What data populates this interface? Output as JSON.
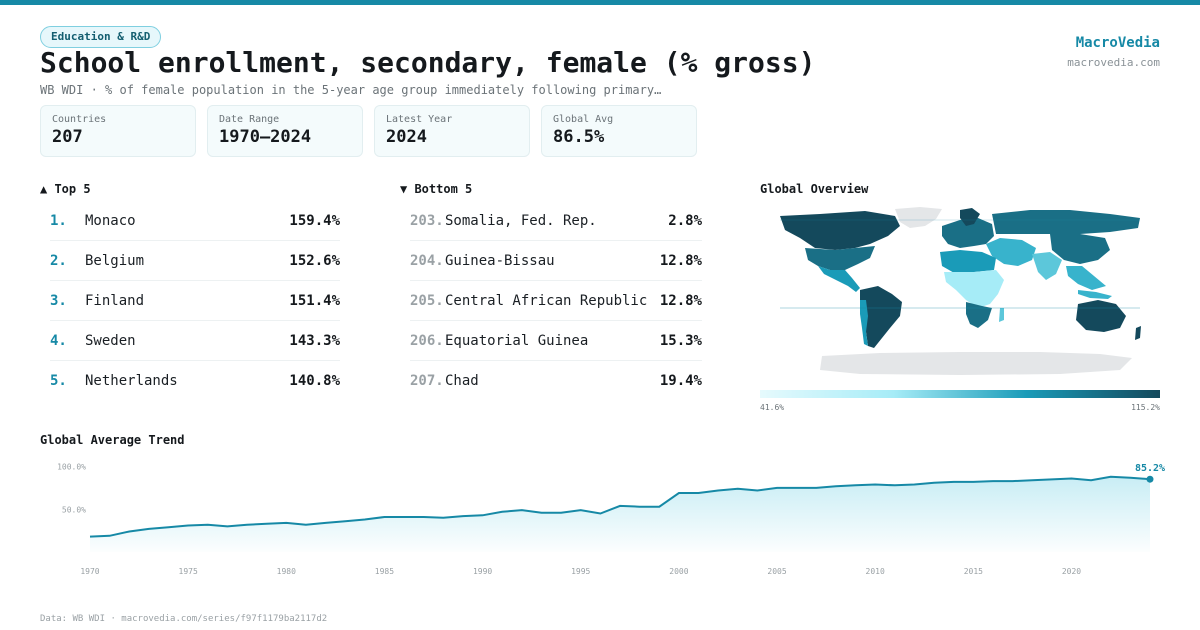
{
  "header": {
    "category": "Education & R&D",
    "title": "School enrollment, secondary, female (% gross)",
    "subtitle": "WB WDI · % of female population in the 5-year age group immediately following primary…",
    "brand": "MacroVedia",
    "brand_url": "macrovedia.com"
  },
  "stats": [
    {
      "label": "Countries",
      "value": "207"
    },
    {
      "label": "Date Range",
      "value": "1970–2024"
    },
    {
      "label": "Latest Year",
      "value": "2024"
    },
    {
      "label": "Global Avg",
      "value": "86.5%"
    }
  ],
  "top5": {
    "title": "▲ Top 5",
    "items": [
      {
        "rank": "1.",
        "name": "Monaco",
        "value": "159.4%"
      },
      {
        "rank": "2.",
        "name": "Belgium",
        "value": "152.6%"
      },
      {
        "rank": "3.",
        "name": "Finland",
        "value": "151.4%"
      },
      {
        "rank": "4.",
        "name": "Sweden",
        "value": "143.3%"
      },
      {
        "rank": "5.",
        "name": "Netherlands",
        "value": "140.8%"
      }
    ]
  },
  "bottom5": {
    "title": "▼ Bottom 5",
    "items": [
      {
        "rank": "203.",
        "name": "Somalia, Fed. Rep.",
        "value": "2.8%"
      },
      {
        "rank": "204.",
        "name": "Guinea-Bissau",
        "value": "12.8%"
      },
      {
        "rank": "205.",
        "name": "Central African Republic",
        "value": "12.8%"
      },
      {
        "rank": "206.",
        "name": "Equatorial Guinea",
        "value": "15.3%"
      },
      {
        "rank": "207.",
        "name": "Chad",
        "value": "19.4%"
      }
    ]
  },
  "map": {
    "title": "Global Overview",
    "legend_min": "41.6%",
    "legend_max": "115.2%",
    "colors": {
      "low": "#a6ecf7",
      "mid": "#1a9bb8",
      "high": "#14495c",
      "nodata": "#e4e6e8"
    }
  },
  "trend": {
    "title": "Global Average Trend",
    "last_label": "85.2%",
    "colors": {
      "line": "#1689a6",
      "fill": "#bfeaf3"
    }
  },
  "chart_data": {
    "type": "area",
    "title": "Global Average Trend",
    "xlabel": "",
    "ylabel": "",
    "x": [
      1970,
      1971,
      1972,
      1973,
      1974,
      1975,
      1976,
      1977,
      1978,
      1979,
      1980,
      1981,
      1982,
      1983,
      1984,
      1985,
      1986,
      1987,
      1988,
      1989,
      1990,
      1991,
      1992,
      1993,
      1994,
      1995,
      1996,
      1997,
      1998,
      1999,
      2000,
      2001,
      2002,
      2003,
      2004,
      2005,
      2006,
      2007,
      2008,
      2009,
      2010,
      2011,
      2012,
      2013,
      2014,
      2015,
      2016,
      2017,
      2018,
      2019,
      2020,
      2021,
      2022,
      2023,
      2024
    ],
    "values": [
      18,
      19,
      24,
      27,
      29,
      31,
      32,
      30,
      32,
      33,
      34,
      32,
      34,
      36,
      38,
      41,
      41,
      41,
      40,
      42,
      43,
      47,
      49,
      46,
      46,
      49,
      45,
      54,
      53,
      53,
      69,
      69,
      72,
      74,
      72,
      75,
      75,
      75,
      77,
      78,
      79,
      78,
      79,
      81,
      82,
      82,
      83,
      83,
      84,
      85,
      86,
      84,
      88,
      87,
      85.2
    ],
    "x_ticks": [
      1970,
      1975,
      1980,
      1985,
      1990,
      1995,
      2000,
      2005,
      2010,
      2015,
      2020
    ],
    "x_tick_labels": [
      "1970",
      "1975",
      "1980",
      "1985",
      "1990",
      "1995",
      "2000",
      "2005",
      "2010",
      "2015",
      "2020"
    ],
    "y_ticks": [
      50,
      100
    ],
    "y_tick_labels": [
      "50.0%",
      "100.0%"
    ],
    "xlim": [
      1970,
      2024
    ],
    "ylim": [
      0,
      110
    ],
    "grid": false,
    "legend": "none"
  }
}
